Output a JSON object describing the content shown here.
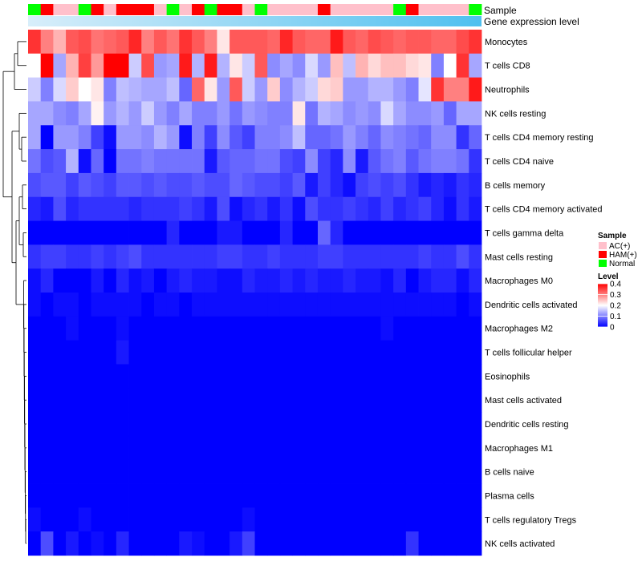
{
  "chart_data": {
    "type": "heatmap",
    "annotation_rows": [
      "Sample",
      "Gene expression level"
    ],
    "sample_groups": [
      "Normal",
      "HAM",
      "AC",
      "AC",
      "Normal",
      "HAM",
      "AC",
      "HAM",
      "HAM",
      "HAM",
      "AC",
      "Normal",
      "AC",
      "HAM",
      "Normal",
      "HAM",
      "HAM",
      "AC",
      "Normal",
      "AC",
      "AC",
      "AC",
      "AC",
      "HAM",
      "AC",
      "AC",
      "AC",
      "AC",
      "AC",
      "Normal",
      "HAM",
      "AC",
      "AC",
      "AC",
      "AC",
      "Normal"
    ],
    "rows": [
      {
        "label": "Monocytes",
        "values": [
          0.36,
          0.3,
          0.26,
          0.33,
          0.34,
          0.31,
          0.32,
          0.33,
          0.37,
          0.3,
          0.33,
          0.31,
          0.36,
          0.33,
          0.3,
          0.22,
          0.33,
          0.33,
          0.33,
          0.32,
          0.37,
          0.33,
          0.32,
          0.32,
          0.38,
          0.33,
          0.32,
          0.34,
          0.33,
          0.32,
          0.33,
          0.33,
          0.32,
          0.32,
          0.34,
          0.36
        ]
      },
      {
        "label": "T cells CD8",
        "values": [
          0.2,
          0.4,
          0.13,
          0.26,
          0.35,
          0.28,
          0.4,
          0.4,
          0.16,
          0.34,
          0.12,
          0.13,
          0.38,
          0.14,
          0.38,
          0.14,
          0.22,
          0.16,
          0.33,
          0.11,
          0.13,
          0.11,
          0.17,
          0.12,
          0.25,
          0.15,
          0.26,
          0.23,
          0.25,
          0.25,
          0.23,
          0.22,
          0.1,
          0.2,
          0.36,
          0.13
        ]
      },
      {
        "label": "Neutrophils",
        "values": [
          0.16,
          0.1,
          0.17,
          0.24,
          0.2,
          0.22,
          0.1,
          0.15,
          0.14,
          0.13,
          0.13,
          0.15,
          0.08,
          0.32,
          0.22,
          0.12,
          0.33,
          0.16,
          0.12,
          0.24,
          0.11,
          0.14,
          0.16,
          0.23,
          0.24,
          0.12,
          0.12,
          0.14,
          0.14,
          0.12,
          0.1,
          0.18,
          0.36,
          0.3,
          0.3,
          0.38
        ]
      },
      {
        "label": "NK cells resting",
        "values": [
          0.13,
          0.13,
          0.11,
          0.1,
          0.13,
          0.21,
          0.12,
          0.14,
          0.12,
          0.16,
          0.12,
          0.1,
          0.13,
          0.1,
          0.1,
          0.12,
          0.09,
          0.12,
          0.11,
          0.1,
          0.1,
          0.22,
          0.09,
          0.14,
          0.13,
          0.11,
          0.12,
          0.11,
          0.17,
          0.13,
          0.11,
          0.11,
          0.12,
          0.08,
          0.13,
          0.13
        ]
      },
      {
        "label": "T cells CD4 memory resting",
        "values": [
          0.13,
          0.0,
          0.12,
          0.12,
          0.1,
          0.05,
          0.01,
          0.12,
          0.12,
          0.11,
          0.14,
          0.12,
          0.01,
          0.1,
          0.05,
          0.11,
          0.07,
          0.05,
          0.1,
          0.1,
          0.11,
          0.15,
          0.08,
          0.08,
          0.09,
          0.12,
          0.1,
          0.08,
          0.11,
          0.1,
          0.09,
          0.08,
          0.11,
          0.11,
          0.04,
          0.08
        ]
      },
      {
        "label": "T cells CD4 naive",
        "values": [
          0.09,
          0.06,
          0.07,
          0.14,
          0.01,
          0.08,
          0.0,
          0.09,
          0.09,
          0.1,
          0.09,
          0.09,
          0.09,
          0.09,
          0.02,
          0.07,
          0.08,
          0.08,
          0.09,
          0.09,
          0.06,
          0.05,
          0.11,
          0.05,
          0.03,
          0.11,
          0.02,
          0.07,
          0.09,
          0.1,
          0.07,
          0.09,
          0.1,
          0.1,
          0.09,
          0.04
        ]
      },
      {
        "label": "B cells memory",
        "values": [
          0.06,
          0.07,
          0.07,
          0.05,
          0.07,
          0.06,
          0.05,
          0.07,
          0.07,
          0.06,
          0.07,
          0.06,
          0.06,
          0.07,
          0.06,
          0.06,
          0.08,
          0.07,
          0.06,
          0.06,
          0.05,
          0.07,
          0.02,
          0.05,
          0.03,
          0.01,
          0.05,
          0.06,
          0.05,
          0.06,
          0.04,
          0.02,
          0.03,
          0.02,
          0.04,
          0.03
        ]
      },
      {
        "label": "T cells CD4 memory activated",
        "values": [
          0.03,
          0.02,
          0.06,
          0.03,
          0.04,
          0.04,
          0.04,
          0.04,
          0.03,
          0.04,
          0.04,
          0.04,
          0.05,
          0.04,
          0.02,
          0.06,
          0.01,
          0.03,
          0.04,
          0.02,
          0.04,
          0.01,
          0.06,
          0.04,
          0.04,
          0.05,
          0.04,
          0.03,
          0.05,
          0.03,
          0.04,
          0.05,
          0.03,
          0.01,
          0.04,
          0.02
        ]
      },
      {
        "label": "T cells gamma delta",
        "values": [
          0.0,
          0.0,
          0.0,
          0.0,
          0.0,
          0.0,
          0.0,
          0.0,
          0.0,
          0.0,
          0.0,
          0.03,
          0.0,
          0.0,
          0.0,
          0.02,
          0.02,
          0.0,
          0.0,
          0.0,
          0.03,
          0.0,
          0.0,
          0.08,
          0.03,
          0.0,
          0.0,
          0.0,
          0.0,
          0.0,
          0.0,
          0.0,
          0.0,
          0.0,
          0.0,
          0.0
        ]
      },
      {
        "label": "Mast cells resting",
        "values": [
          0.04,
          0.05,
          0.05,
          0.04,
          0.04,
          0.05,
          0.04,
          0.05,
          0.06,
          0.04,
          0.04,
          0.04,
          0.04,
          0.04,
          0.04,
          0.05,
          0.05,
          0.04,
          0.04,
          0.05,
          0.04,
          0.04,
          0.04,
          0.05,
          0.05,
          0.04,
          0.04,
          0.04,
          0.04,
          0.04,
          0.04,
          0.05,
          0.04,
          0.04,
          0.06,
          0.04
        ]
      },
      {
        "label": "Macrophages M0",
        "values": [
          0.01,
          0.03,
          0.0,
          0.0,
          0.0,
          0.02,
          0.0,
          0.03,
          0.01,
          0.02,
          0.0,
          0.02,
          0.03,
          0.02,
          0.02,
          0.01,
          0.01,
          0.03,
          0.02,
          0.02,
          0.03,
          0.02,
          0.03,
          0.02,
          0.02,
          0.03,
          0.02,
          0.02,
          0.01,
          0.03,
          0.0,
          0.02,
          0.03,
          0.03,
          0.01,
          0.03
        ]
      },
      {
        "label": "Dendritic cells activated",
        "values": [
          0.01,
          0.0,
          0.01,
          0.01,
          0.0,
          0.01,
          0.01,
          0.01,
          0.01,
          0.0,
          0.01,
          0.01,
          0.0,
          0.01,
          0.01,
          0.01,
          0.01,
          0.01,
          0.01,
          0.01,
          0.01,
          0.01,
          0.01,
          0.01,
          0.01,
          0.01,
          0.01,
          0.01,
          0.01,
          0.01,
          0.01,
          0.01,
          0.01,
          0.01,
          0.0,
          0.01
        ]
      },
      {
        "label": "Macrophages M2",
        "values": [
          0.0,
          0.0,
          0.0,
          0.01,
          0.0,
          0.0,
          0.0,
          0.01,
          0.0,
          0.0,
          0.0,
          0.0,
          0.0,
          0.0,
          0.0,
          0.0,
          0.0,
          0.0,
          0.0,
          0.0,
          0.0,
          0.0,
          0.0,
          0.0,
          0.0,
          0.0,
          0.0,
          0.0,
          0.01,
          0.0,
          0.0,
          0.0,
          0.0,
          0.0,
          0.0,
          0.0
        ]
      },
      {
        "label": "T cells follicular helper",
        "values": [
          0.0,
          0.0,
          0.0,
          0.0,
          0.0,
          0.0,
          0.0,
          0.02,
          0.0,
          0.0,
          0.0,
          0.0,
          0.0,
          0.0,
          0.0,
          0.0,
          0.0,
          0.0,
          0.0,
          0.0,
          0.0,
          0.0,
          0.0,
          0.0,
          0.0,
          0.0,
          0.0,
          0.0,
          0.0,
          0.0,
          0.0,
          0.0,
          0.0,
          0.0,
          0.0,
          0.0
        ]
      },
      {
        "label": "Eosinophils",
        "values": [
          0.0,
          0.0,
          0.0,
          0.0,
          0.0,
          0.0,
          0.0,
          0.0,
          0.0,
          0.0,
          0.0,
          0.0,
          0.0,
          0.0,
          0.0,
          0.0,
          0.0,
          0.0,
          0.0,
          0.0,
          0.0,
          0.0,
          0.0,
          0.0,
          0.0,
          0.0,
          0.0,
          0.0,
          0.0,
          0.0,
          0.0,
          0.0,
          0.0,
          0.0,
          0.0,
          0.0
        ]
      },
      {
        "label": "Mast cells activated",
        "values": [
          0.0,
          0.0,
          0.0,
          0.0,
          0.0,
          0.0,
          0.0,
          0.0,
          0.0,
          0.0,
          0.0,
          0.0,
          0.0,
          0.0,
          0.0,
          0.0,
          0.0,
          0.0,
          0.0,
          0.0,
          0.0,
          0.0,
          0.0,
          0.0,
          0.0,
          0.0,
          0.0,
          0.0,
          0.0,
          0.0,
          0.0,
          0.0,
          0.0,
          0.0,
          0.0,
          0.0
        ]
      },
      {
        "label": "Dendritic cells resting",
        "values": [
          0.0,
          0.0,
          0.0,
          0.0,
          0.0,
          0.0,
          0.0,
          0.0,
          0.0,
          0.0,
          0.0,
          0.0,
          0.0,
          0.0,
          0.0,
          0.0,
          0.0,
          0.0,
          0.0,
          0.0,
          0.0,
          0.0,
          0.0,
          0.0,
          0.0,
          0.0,
          0.0,
          0.0,
          0.0,
          0.0,
          0.0,
          0.0,
          0.0,
          0.0,
          0.0,
          0.0
        ]
      },
      {
        "label": "Macrophages M1",
        "values": [
          0.0,
          0.0,
          0.0,
          0.0,
          0.0,
          0.0,
          0.0,
          0.0,
          0.0,
          0.0,
          0.0,
          0.0,
          0.0,
          0.0,
          0.0,
          0.0,
          0.0,
          0.0,
          0.0,
          0.0,
          0.0,
          0.0,
          0.0,
          0.0,
          0.0,
          0.0,
          0.0,
          0.0,
          0.0,
          0.0,
          0.0,
          0.0,
          0.0,
          0.0,
          0.0,
          0.0
        ]
      },
      {
        "label": "B cells naive",
        "values": [
          0.0,
          0.0,
          0.0,
          0.0,
          0.0,
          0.0,
          0.0,
          0.0,
          0.0,
          0.0,
          0.0,
          0.0,
          0.0,
          0.0,
          0.0,
          0.0,
          0.0,
          0.0,
          0.0,
          0.0,
          0.0,
          0.0,
          0.0,
          0.0,
          0.0,
          0.0,
          0.0,
          0.0,
          0.0,
          0.0,
          0.0,
          0.0,
          0.0,
          0.0,
          0.0,
          0.0
        ]
      },
      {
        "label": "Plasma cells",
        "values": [
          0.0,
          0.0,
          0.0,
          0.0,
          0.0,
          0.0,
          0.0,
          0.0,
          0.0,
          0.0,
          0.0,
          0.0,
          0.0,
          0.0,
          0.0,
          0.0,
          0.0,
          0.0,
          0.0,
          0.0,
          0.0,
          0.0,
          0.0,
          0.0,
          0.0,
          0.0,
          0.0,
          0.0,
          0.0,
          0.0,
          0.0,
          0.0,
          0.0,
          0.0,
          0.0,
          0.0
        ]
      },
      {
        "label": "T cells regulatory  Tregs",
        "values": [
          0.01,
          0.0,
          0.0,
          0.0,
          0.01,
          0.0,
          0.0,
          0.0,
          0.0,
          0.0,
          0.0,
          0.0,
          0.0,
          0.0,
          0.0,
          0.0,
          0.0,
          0.01,
          0.0,
          0.0,
          0.0,
          0.0,
          0.0,
          0.0,
          0.0,
          0.0,
          0.0,
          0.0,
          0.0,
          0.0,
          0.0,
          0.0,
          0.0,
          0.0,
          0.0,
          0.0
        ]
      },
      {
        "label": "NK cells activated",
        "values": [
          0.0,
          0.06,
          0.0,
          0.02,
          0.0,
          0.01,
          0.0,
          0.03,
          0.0,
          0.0,
          0.0,
          0.0,
          0.02,
          0.01,
          0.0,
          0.0,
          0.02,
          0.05,
          0.0,
          0.0,
          0.0,
          0.0,
          0.0,
          0.0,
          0.0,
          0.0,
          0.0,
          0.0,
          0.0,
          0.0,
          0.04,
          0.0,
          0.0,
          0.0,
          0.0,
          0.0
        ]
      }
    ],
    "color_scale": {
      "min": 0,
      "max": 0.4,
      "low": "#0000ff",
      "mid": "#ffffff",
      "mid_value": 0.2,
      "high": "#ff0000"
    },
    "gene_expression_gradient": {
      "start": "#d8eefa",
      "end": "#4fc0ef"
    },
    "legend": {
      "sample_title": "Sample",
      "sample_items": [
        {
          "label": "AC(+)",
          "key": "AC",
          "color": "#ffc0cb"
        },
        {
          "label": "HAM(+)",
          "key": "HAM",
          "color": "#ff0000"
        },
        {
          "label": "Normal",
          "key": "Normal",
          "color": "#00ff00"
        }
      ],
      "level_title": "Level",
      "level_ticks": [
        {
          "label": "0.4",
          "value": 0.4
        },
        {
          "label": "0.3",
          "value": 0.3
        },
        {
          "label": "0.2",
          "value": 0.2
        },
        {
          "label": "0.1",
          "value": 0.1
        },
        {
          "label": "0",
          "value": 0.0
        }
      ]
    }
  }
}
